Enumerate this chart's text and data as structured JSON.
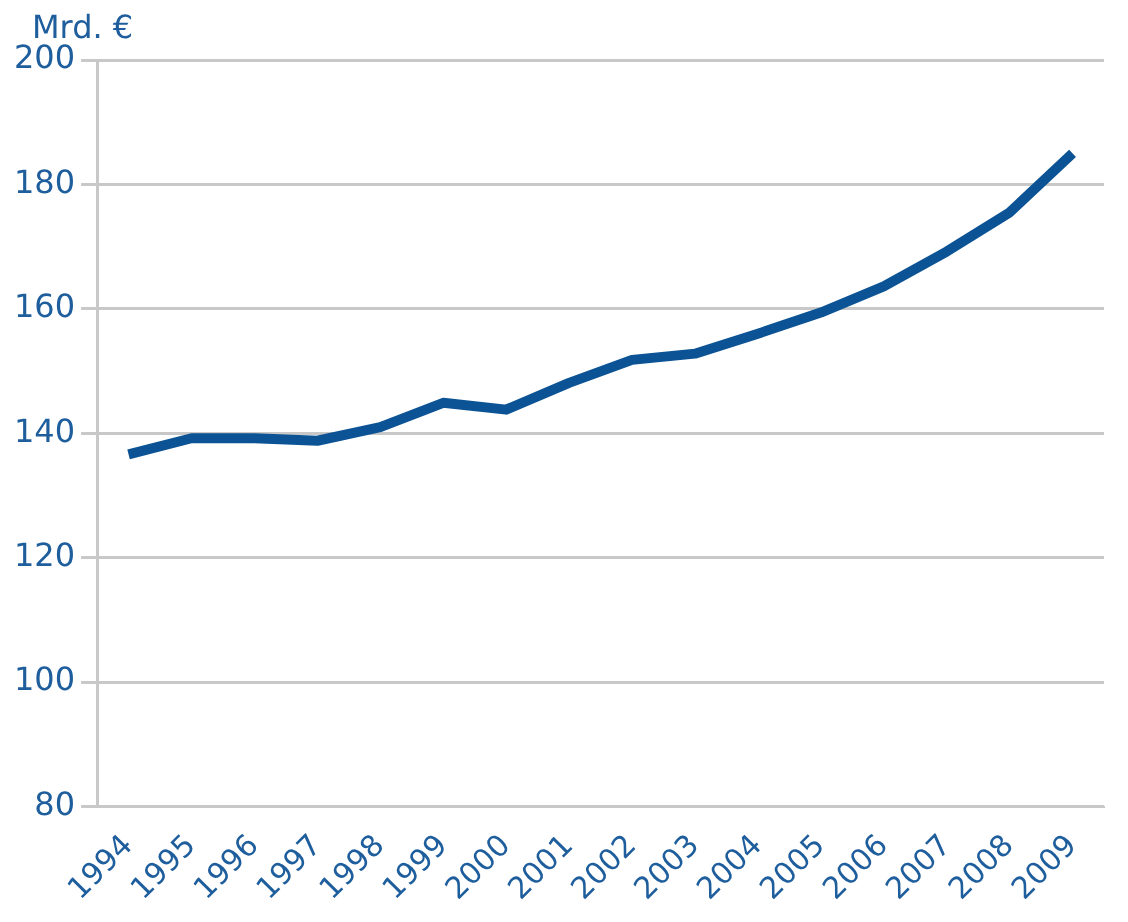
{
  "chart_data": {
    "type": "line",
    "ylabel": "Mrd. €",
    "categories": [
      "1994",
      "1995",
      "1996",
      "1997",
      "1998",
      "1999",
      "2000",
      "2001",
      "2002",
      "2003",
      "2004",
      "2005",
      "2006",
      "2007",
      "2008",
      "2009"
    ],
    "series": [
      {
        "color": "#0b5394",
        "values": [
          136.6,
          139.2,
          139.2,
          138.8,
          141,
          144.9,
          143.8,
          148.1,
          151.8,
          152.8,
          156,
          159.4,
          163.6,
          169.2,
          175.5,
          185
        ]
      }
    ],
    "ylim": [
      80,
      200
    ],
    "yticks": [
      80,
      100,
      120,
      140,
      160,
      180,
      200
    ],
    "grid": "y",
    "legend": false,
    "marker": "none",
    "line_style": "solid"
  }
}
